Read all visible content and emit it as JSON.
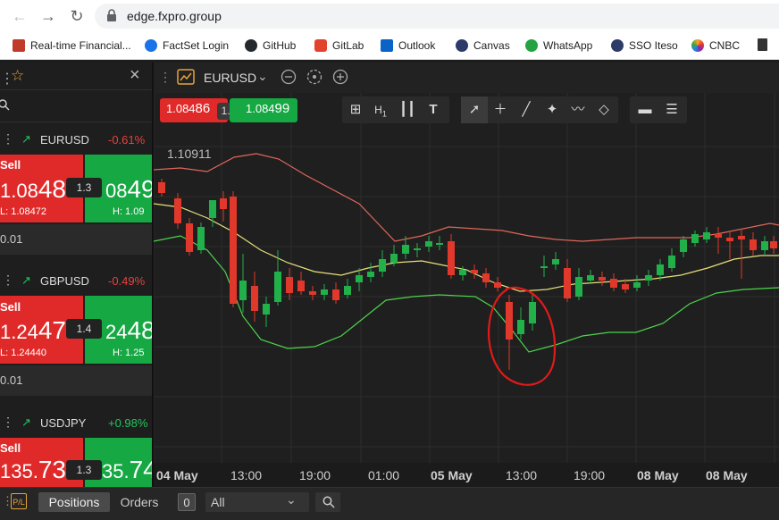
{
  "browser": {
    "url": "edge.fxpro.group",
    "bookmarks": [
      "Real-time Financial...",
      "FactSet Login",
      "GitHub",
      "GitLab",
      "Outlook",
      "Canvas",
      "WhatsApp",
      "SSO Iteso",
      "CNBC"
    ]
  },
  "watchlist": {
    "close_glyph": "×",
    "items": [
      {
        "symbol": "EURUSD",
        "change": "-0.61%",
        "change_color": "#e8413c",
        "sell_label": "Sell",
        "sell_price_main": "1.08",
        "sell_price_big": "48",
        "spread": "1.3",
        "buy_price_main": "08",
        "buy_price_big": "49",
        "low": "L: 1.08472",
        "high": "H: 1.09",
        "lot": "0.01"
      },
      {
        "symbol": "GBPUSD",
        "change": "-0.49%",
        "change_color": "#e8413c",
        "sell_label": "Sell",
        "sell_price_main": "1.24",
        "sell_price_big": "47",
        "spread": "1.4",
        "buy_price_main": "24",
        "buy_price_big": "48",
        "low": "L: 1.24440",
        "high": "H: 1.25",
        "lot": "0.01"
      },
      {
        "symbol": "USDJPY",
        "change": "+0.98%",
        "change_color": "#22c55e",
        "sell_label": "Sell",
        "sell_price_main": "135.",
        "sell_price_big": "73",
        "spread": "1.3",
        "buy_price_main": "35.",
        "buy_price_big": "74"
      }
    ]
  },
  "chart": {
    "symbol": "EURUSD",
    "sell_quote_main": "1.084",
    "sell_quote_big": "86",
    "spread": "1.3",
    "buy_quote_main": "1.084",
    "buy_quote_big": "99",
    "price_label": "1.10911",
    "timeframe": "H",
    "timeframe_sub": "1",
    "time_labels": [
      {
        "text": "04 May",
        "bold": true
      },
      {
        "text": "13:00",
        "bold": false
      },
      {
        "text": "19:00",
        "bold": false
      },
      {
        "text": "01:00",
        "bold": false
      },
      {
        "text": "05 May",
        "bold": true
      },
      {
        "text": "13:00",
        "bold": false
      },
      {
        "text": "19:00",
        "bold": false
      },
      {
        "text": "08 May",
        "bold": true
      },
      {
        "text": "08 May",
        "bold": true
      }
    ]
  },
  "bottom": {
    "positions_tab": "Positions",
    "orders_tab": "Orders",
    "orders_count": "0",
    "filter_value": "All"
  },
  "colors": {
    "up": "#22b04b",
    "down": "#e0392b",
    "upper_band": "#e0675a",
    "lower_band": "#4cd44c",
    "mid_band": "#e8e07a",
    "annotation": "#e01a1a"
  }
}
